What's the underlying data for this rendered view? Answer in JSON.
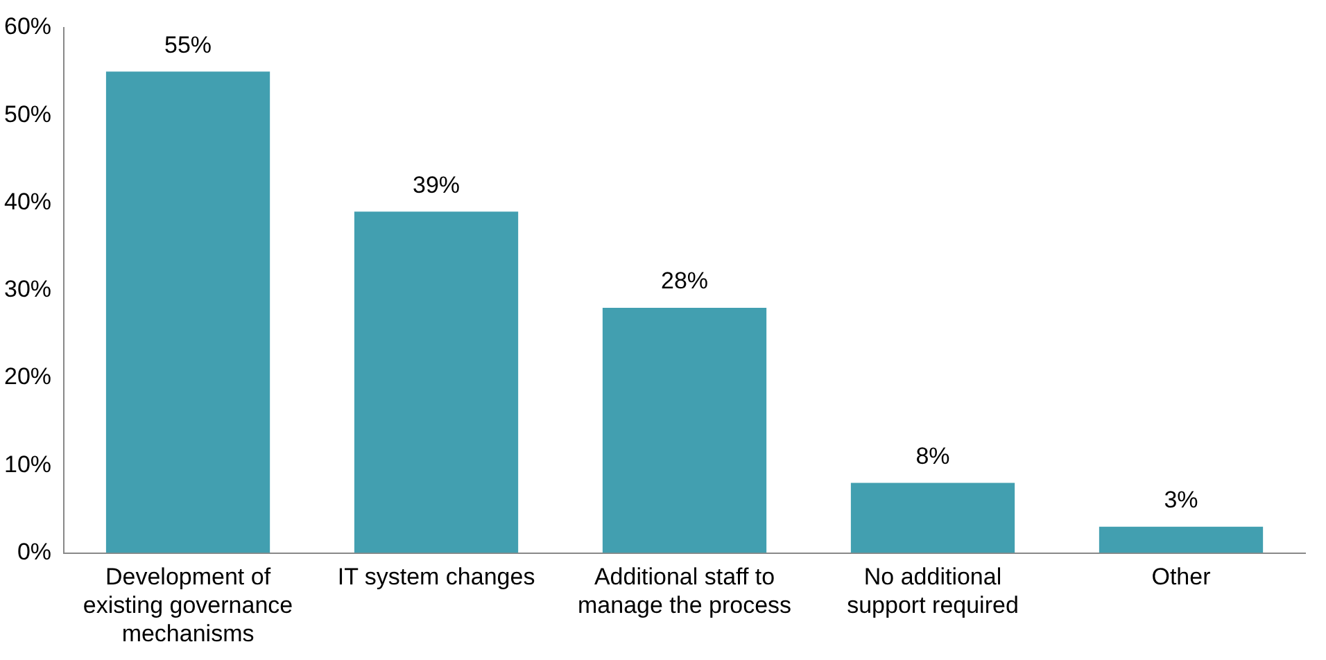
{
  "chart_data": {
    "type": "bar",
    "categories": [
      "Development of existing governance mechanisms",
      "IT system changes",
      "Additional staff to manage the process",
      "No additional support required",
      "Other"
    ],
    "values": [
      55,
      39,
      28,
      8,
      3
    ],
    "value_labels": [
      "55%",
      "39%",
      "28%",
      "8%",
      "3%"
    ],
    "color": "#429fb0",
    "ylim": [
      0,
      60
    ],
    "yticks": [
      {
        "value": 0,
        "label": "0%"
      },
      {
        "value": 10,
        "label": "10%"
      },
      {
        "value": 20,
        "label": "20%"
      },
      {
        "value": 30,
        "label": "30%"
      },
      {
        "value": 40,
        "label": "40%"
      },
      {
        "value": 50,
        "label": "50%"
      },
      {
        "value": 60,
        "label": "60%"
      }
    ],
    "grid": false,
    "legend": false
  }
}
